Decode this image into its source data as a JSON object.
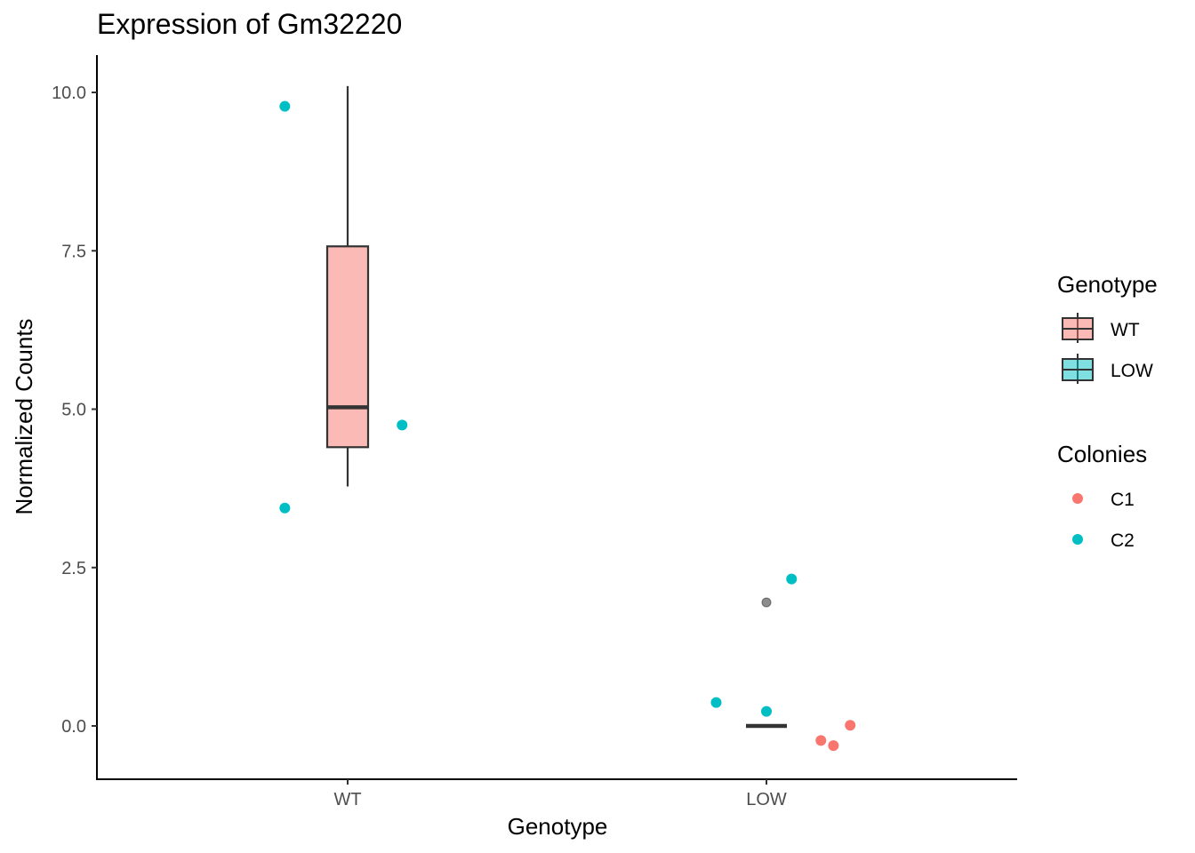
{
  "chart_data": {
    "type": "box",
    "title": "Expression of Gm32220",
    "xlabel": "Genotype",
    "ylabel": "Normalized Counts",
    "categories": [
      "WT",
      "LOW"
    ],
    "ylim": [
      -0.8,
      10.6
    ],
    "yticks": [
      0.0,
      2.5,
      5.0,
      7.5,
      10.0
    ],
    "ytick_labels": [
      "0.0",
      "2.5",
      "5.0",
      "7.5",
      "10.0"
    ],
    "grid": false,
    "boxes": [
      {
        "category": "WT",
        "min": 3.78,
        "q1": 4.4,
        "median": 5.03,
        "q3": 7.57,
        "max": 10.1,
        "fill": "#F8766D",
        "outliers": []
      },
      {
        "category": "LOW",
        "min": 0.0,
        "q1": 0.0,
        "median": 0.0,
        "q3": 0.0,
        "max": 0.0,
        "fill": "#00BFC4",
        "outliers": [
          1.95
        ]
      }
    ],
    "points": [
      {
        "category": "WT",
        "offset": -0.15,
        "y": 9.78,
        "colony": "C2"
      },
      {
        "category": "WT",
        "offset": 0.13,
        "y": 4.75,
        "colony": "C2"
      },
      {
        "category": "WT",
        "offset": -0.15,
        "y": 3.44,
        "colony": "C2"
      },
      {
        "category": "LOW",
        "offset": 0.06,
        "y": 2.32,
        "colony": "C2"
      },
      {
        "category": "LOW",
        "offset": -0.12,
        "y": 0.37,
        "colony": "C2"
      },
      {
        "category": "LOW",
        "offset": 0.0,
        "y": 0.23,
        "colony": "C2"
      },
      {
        "category": "LOW",
        "offset": 0.2,
        "y": 0.01,
        "colony": "C1"
      },
      {
        "category": "LOW",
        "offset": 0.13,
        "y": -0.23,
        "colony": "C1"
      },
      {
        "category": "LOW",
        "offset": 0.16,
        "y": -0.31,
        "colony": "C1"
      }
    ],
    "legends": [
      {
        "title": "Genotype",
        "kind": "box",
        "items": [
          {
            "label": "WT",
            "color": "#F8766D"
          },
          {
            "label": "LOW",
            "color": "#00BFC4"
          }
        ]
      },
      {
        "title": "Colonies",
        "kind": "point",
        "items": [
          {
            "label": "C1",
            "color": "#F8766D"
          },
          {
            "label": "C2",
            "color": "#00BFC4"
          }
        ]
      }
    ],
    "legend_position": "right"
  }
}
